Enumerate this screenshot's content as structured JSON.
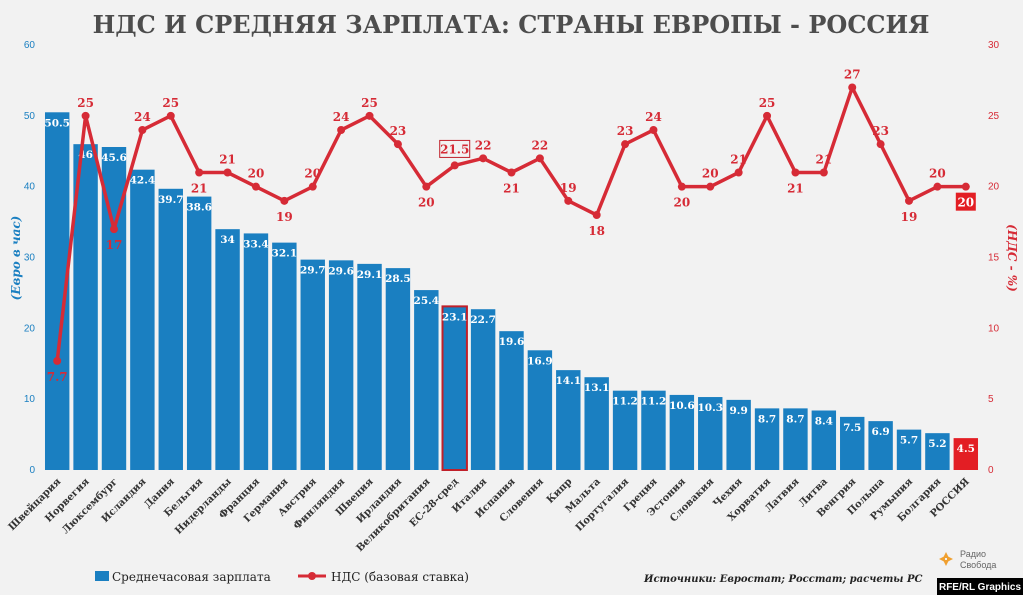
{
  "chart_data": {
    "type": "bar",
    "title": "НДС И СРЕДНЯЯ ЗАРПЛАТА: СТРАНЫ ЕВРОПЫ - РОССИЯ",
    "ylabel_left": "(Евро в час)",
    "ylabel_right": "(НДС - %)",
    "ylim_left": [
      0,
      60
    ],
    "ylim_right": [
      0,
      30
    ],
    "yticks_left": [
      0,
      10,
      20,
      30,
      40,
      50,
      60
    ],
    "yticks_right": [
      0,
      5,
      10,
      15,
      20,
      25,
      30
    ],
    "categories": [
      "Швейцария",
      "Норвегия",
      "Люксембург",
      "Исландия",
      "Дания",
      "Бельгия",
      "Нидерланды",
      "Франция",
      "Германия",
      "Австрия",
      "Финляндия",
      "Швеция",
      "Ирландия",
      "Великобритания",
      "ЕС-28-сред",
      "Италия",
      "Испания",
      "Словения",
      "Кипр",
      "Мальта",
      "Португалия",
      "Греция",
      "Эстония",
      "Словакия",
      "Чехия",
      "Хорватия",
      "Латвия",
      "Литва",
      "Венгрия",
      "Польша",
      "Румыния",
      "Болгария",
      "РОССИЯ"
    ],
    "series": [
      {
        "name": "Среднечасовая зарплата",
        "kind": "bar",
        "axis": "left",
        "color": "#1a7fc1",
        "values": [
          50.5,
          46,
          45.6,
          42.4,
          39.7,
          38.6,
          34,
          33.4,
          32.1,
          29.7,
          29.6,
          29.1,
          28.5,
          25.4,
          23.1,
          22.7,
          19.6,
          16.9,
          14.1,
          13.1,
          11.2,
          11.2,
          10.6,
          10.3,
          9.9,
          8.7,
          8.7,
          8.4,
          7.5,
          6.9,
          5.7,
          5.2,
          4.5
        ]
      },
      {
        "name": "НДС (базовая ставка)",
        "kind": "line",
        "axis": "right",
        "color": "#d62b36",
        "values": [
          7.7,
          25,
          17,
          24,
          25,
          21,
          21,
          20,
          19,
          20,
          24,
          25,
          23,
          20,
          21.5,
          22,
          21,
          22,
          19,
          18,
          23,
          24,
          20,
          20,
          21,
          25,
          21,
          21,
          27,
          23,
          19,
          20,
          20
        ]
      }
    ],
    "highlights": [
      {
        "category": "ЕС-28-сред",
        "style": "outline",
        "color": "#c0202a"
      },
      {
        "category": "РОССИЯ",
        "style": "fill",
        "color": "#e31e24"
      }
    ],
    "legend_position": "bottom-left",
    "grid": false
  },
  "source": "Источники: Евростат; Росстат; расчеты РС",
  "logo": {
    "line1": "Радио",
    "line2": "Свобода"
  },
  "credit": "RFE/RL Graphics",
  "colors": {
    "bar": "#1a7fc1",
    "line": "#d62b36",
    "russia": "#e31e24",
    "background": "#f2f2f2"
  }
}
